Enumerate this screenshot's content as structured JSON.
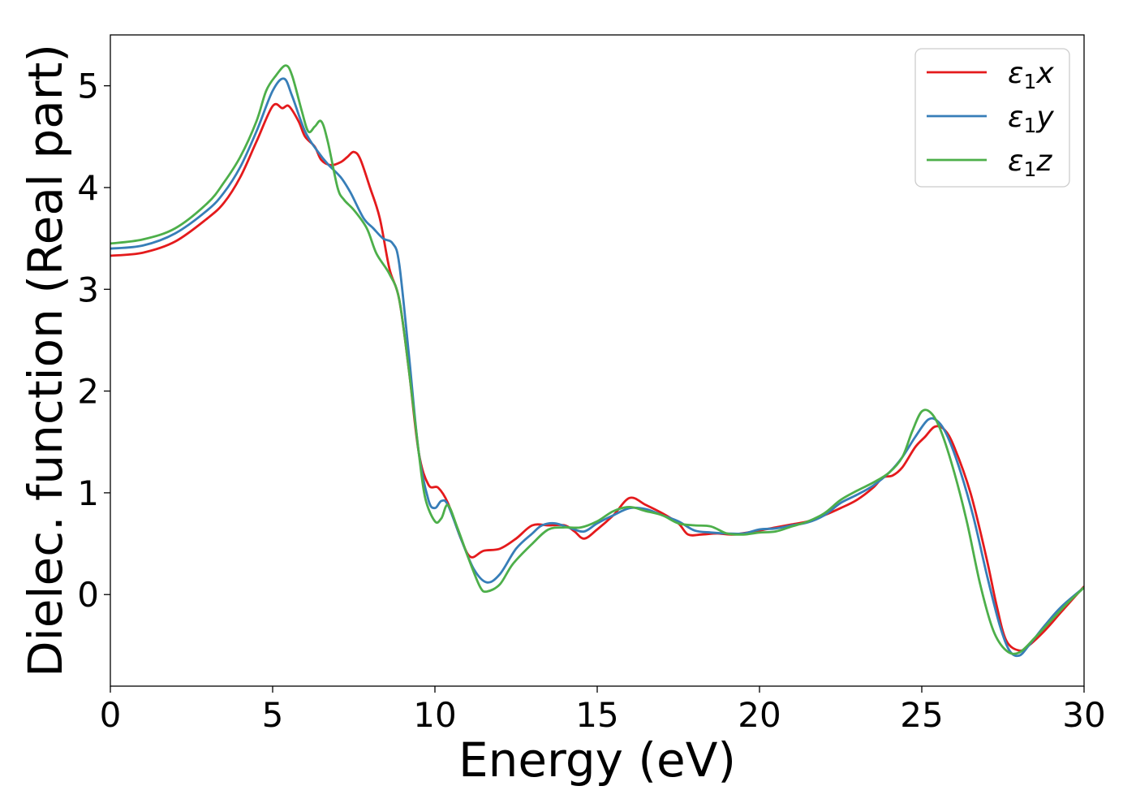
{
  "chart_data": {
    "type": "line",
    "title": "",
    "xlabel": "Energy (eV)",
    "ylabel": "Dielec. function (Real part)",
    "xlim": [
      0,
      30
    ],
    "ylim": [
      -0.9,
      5.5
    ],
    "xticks": [
      "0",
      "5",
      "10",
      "15",
      "20",
      "25",
      "30"
    ],
    "xtick_values": [
      0,
      5,
      10,
      15,
      20,
      25,
      30
    ],
    "yticks": [
      "0",
      "1",
      "2",
      "3",
      "4",
      "5"
    ],
    "ytick_values": [
      0,
      1,
      2,
      3,
      4,
      5
    ],
    "grid": false,
    "legend_position": "top-right",
    "series": [
      {
        "name_base": "ε",
        "name_sub": "1",
        "name_suffix": "x",
        "color": "#e41a1c",
        "points": [
          [
            0,
            3.33
          ],
          [
            1,
            3.36
          ],
          [
            2,
            3.47
          ],
          [
            3,
            3.7
          ],
          [
            3.5,
            3.85
          ],
          [
            4,
            4.1
          ],
          [
            4.5,
            4.45
          ],
          [
            5,
            4.8
          ],
          [
            5.3,
            4.78
          ],
          [
            5.5,
            4.8
          ],
          [
            5.8,
            4.65
          ],
          [
            6,
            4.5
          ],
          [
            6.3,
            4.4
          ],
          [
            6.5,
            4.27
          ],
          [
            6.8,
            4.22
          ],
          [
            7.1,
            4.25
          ],
          [
            7.3,
            4.3
          ],
          [
            7.5,
            4.35
          ],
          [
            7.7,
            4.28
          ],
          [
            8,
            4.0
          ],
          [
            8.3,
            3.7
          ],
          [
            8.6,
            3.2
          ],
          [
            8.9,
            2.9
          ],
          [
            9.2,
            2.2
          ],
          [
            9.5,
            1.4
          ],
          [
            9.8,
            1.08
          ],
          [
            10.1,
            1.05
          ],
          [
            10.4,
            0.9
          ],
          [
            10.8,
            0.55
          ],
          [
            11.1,
            0.37
          ],
          [
            11.5,
            0.43
          ],
          [
            12,
            0.45
          ],
          [
            12.5,
            0.55
          ],
          [
            13,
            0.68
          ],
          [
            13.5,
            0.68
          ],
          [
            14,
            0.68
          ],
          [
            14.3,
            0.62
          ],
          [
            14.6,
            0.55
          ],
          [
            15,
            0.64
          ],
          [
            15.5,
            0.78
          ],
          [
            16,
            0.95
          ],
          [
            16.5,
            0.88
          ],
          [
            17,
            0.8
          ],
          [
            17.5,
            0.7
          ],
          [
            17.8,
            0.59
          ],
          [
            18.2,
            0.59
          ],
          [
            18.7,
            0.6
          ],
          [
            19.2,
            0.59
          ],
          [
            20,
            0.63
          ],
          [
            20.5,
            0.66
          ],
          [
            21,
            0.69
          ],
          [
            21.5,
            0.72
          ],
          [
            22,
            0.78
          ],
          [
            22.5,
            0.85
          ],
          [
            23,
            0.93
          ],
          [
            23.5,
            1.05
          ],
          [
            23.8,
            1.15
          ],
          [
            24.1,
            1.17
          ],
          [
            24.4,
            1.25
          ],
          [
            24.8,
            1.45
          ],
          [
            25.1,
            1.55
          ],
          [
            25.4,
            1.65
          ],
          [
            25.7,
            1.62
          ],
          [
            26,
            1.45
          ],
          [
            26.5,
            1.0
          ],
          [
            27,
            0.35
          ],
          [
            27.3,
            -0.1
          ],
          [
            27.6,
            -0.45
          ],
          [
            28,
            -0.55
          ],
          [
            28.3,
            -0.5
          ],
          [
            28.8,
            -0.35
          ],
          [
            29.3,
            -0.17
          ],
          [
            30,
            0.08
          ]
        ]
      },
      {
        "name_base": "ε",
        "name_sub": "1",
        "name_suffix": "y",
        "color": "#377eb8",
        "points": [
          [
            0,
            3.4
          ],
          [
            1,
            3.43
          ],
          [
            2,
            3.55
          ],
          [
            3,
            3.78
          ],
          [
            3.5,
            3.95
          ],
          [
            4,
            4.2
          ],
          [
            4.5,
            4.55
          ],
          [
            5,
            4.95
          ],
          [
            5.35,
            5.07
          ],
          [
            5.6,
            4.9
          ],
          [
            6,
            4.55
          ],
          [
            6.4,
            4.35
          ],
          [
            6.7,
            4.23
          ],
          [
            7.1,
            4.1
          ],
          [
            7.4,
            3.95
          ],
          [
            7.8,
            3.7
          ],
          [
            8.1,
            3.6
          ],
          [
            8.4,
            3.5
          ],
          [
            8.7,
            3.45
          ],
          [
            8.9,
            3.25
          ],
          [
            9.2,
            2.35
          ],
          [
            9.5,
            1.4
          ],
          [
            9.8,
            0.93
          ],
          [
            10,
            0.85
          ],
          [
            10.2,
            0.92
          ],
          [
            10.4,
            0.88
          ],
          [
            10.8,
            0.55
          ],
          [
            11.2,
            0.25
          ],
          [
            11.6,
            0.12
          ],
          [
            12,
            0.2
          ],
          [
            12.5,
            0.45
          ],
          [
            13,
            0.6
          ],
          [
            13.3,
            0.68
          ],
          [
            13.7,
            0.7
          ],
          [
            14.2,
            0.65
          ],
          [
            14.6,
            0.62
          ],
          [
            15,
            0.7
          ],
          [
            15.5,
            0.78
          ],
          [
            16,
            0.85
          ],
          [
            16.5,
            0.84
          ],
          [
            17,
            0.78
          ],
          [
            17.5,
            0.72
          ],
          [
            18,
            0.63
          ],
          [
            18.5,
            0.61
          ],
          [
            19,
            0.6
          ],
          [
            19.5,
            0.6
          ],
          [
            20,
            0.64
          ],
          [
            20.5,
            0.65
          ],
          [
            21,
            0.68
          ],
          [
            21.5,
            0.71
          ],
          [
            22,
            0.78
          ],
          [
            22.5,
            0.9
          ],
          [
            23,
            0.98
          ],
          [
            23.5,
            1.07
          ],
          [
            24,
            1.2
          ],
          [
            24.4,
            1.35
          ],
          [
            24.8,
            1.55
          ],
          [
            25.2,
            1.72
          ],
          [
            25.5,
            1.7
          ],
          [
            25.8,
            1.55
          ],
          [
            26.2,
            1.2
          ],
          [
            26.6,
            0.75
          ],
          [
            27,
            0.2
          ],
          [
            27.4,
            -0.3
          ],
          [
            27.7,
            -0.55
          ],
          [
            28,
            -0.6
          ],
          [
            28.3,
            -0.5
          ],
          [
            28.8,
            -0.3
          ],
          [
            29.3,
            -0.12
          ],
          [
            30,
            0.07
          ]
        ]
      },
      {
        "name_base": "ε",
        "name_sub": "1",
        "name_suffix": "z",
        "color": "#4daf4a",
        "points": [
          [
            0,
            3.45
          ],
          [
            1,
            3.49
          ],
          [
            2,
            3.6
          ],
          [
            3,
            3.85
          ],
          [
            3.5,
            4.05
          ],
          [
            4,
            4.3
          ],
          [
            4.5,
            4.65
          ],
          [
            4.8,
            4.95
          ],
          [
            5.1,
            5.1
          ],
          [
            5.4,
            5.2
          ],
          [
            5.6,
            5.1
          ],
          [
            5.9,
            4.75
          ],
          [
            6.1,
            4.55
          ],
          [
            6.3,
            4.6
          ],
          [
            6.5,
            4.65
          ],
          [
            6.7,
            4.45
          ],
          [
            7,
            4.0
          ],
          [
            7.2,
            3.88
          ],
          [
            7.5,
            3.78
          ],
          [
            7.9,
            3.6
          ],
          [
            8.2,
            3.35
          ],
          [
            8.6,
            3.15
          ],
          [
            8.9,
            2.9
          ],
          [
            9.2,
            2.2
          ],
          [
            9.5,
            1.4
          ],
          [
            9.7,
            0.95
          ],
          [
            10,
            0.72
          ],
          [
            10.2,
            0.75
          ],
          [
            10.4,
            0.88
          ],
          [
            10.7,
            0.65
          ],
          [
            11.1,
            0.3
          ],
          [
            11.4,
            0.07
          ],
          [
            11.6,
            0.03
          ],
          [
            12,
            0.1
          ],
          [
            12.4,
            0.3
          ],
          [
            13,
            0.5
          ],
          [
            13.5,
            0.64
          ],
          [
            14,
            0.66
          ],
          [
            14.5,
            0.66
          ],
          [
            15,
            0.72
          ],
          [
            15.5,
            0.82
          ],
          [
            16,
            0.86
          ],
          [
            16.5,
            0.82
          ],
          [
            17,
            0.78
          ],
          [
            17.5,
            0.7
          ],
          [
            18,
            0.68
          ],
          [
            18.5,
            0.67
          ],
          [
            19,
            0.6
          ],
          [
            19.5,
            0.59
          ],
          [
            20,
            0.61
          ],
          [
            20.5,
            0.62
          ],
          [
            21,
            0.67
          ],
          [
            21.5,
            0.72
          ],
          [
            22,
            0.8
          ],
          [
            22.5,
            0.93
          ],
          [
            23,
            1.02
          ],
          [
            23.5,
            1.1
          ],
          [
            24,
            1.2
          ],
          [
            24.4,
            1.35
          ],
          [
            24.7,
            1.6
          ],
          [
            25,
            1.8
          ],
          [
            25.3,
            1.78
          ],
          [
            25.6,
            1.6
          ],
          [
            26,
            1.2
          ],
          [
            26.4,
            0.7
          ],
          [
            26.8,
            0.1
          ],
          [
            27.2,
            -0.35
          ],
          [
            27.6,
            -0.55
          ],
          [
            28,
            -0.57
          ],
          [
            28.5,
            -0.42
          ],
          [
            29,
            -0.25
          ],
          [
            29.5,
            -0.08
          ],
          [
            30,
            0.07
          ]
        ]
      }
    ]
  }
}
